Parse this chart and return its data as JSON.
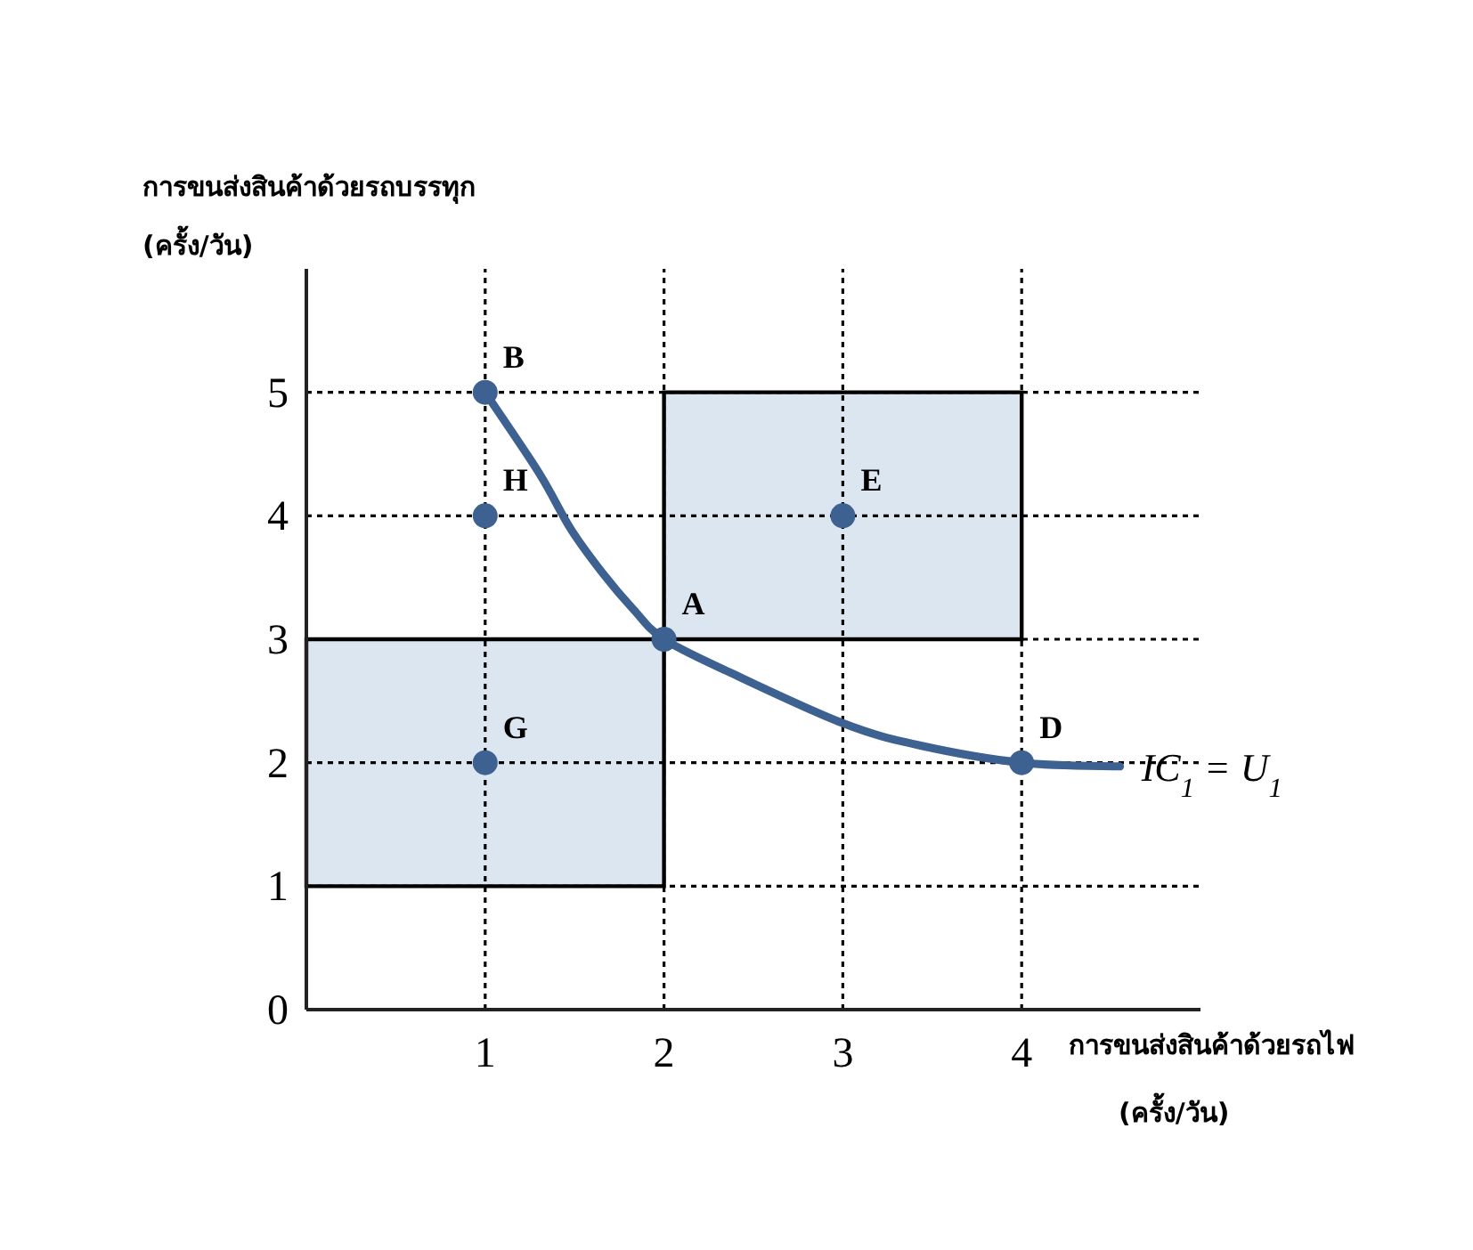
{
  "chart_data": {
    "type": "line",
    "xlabel": "การขนส่งสินค้าด้วยรถไฟ\n(ครั้ง/วัน)",
    "ylabel": "การขนส่งสินค้าด้วยรถบรรทุก\n(ครั้ง/วัน)",
    "xlim": [
      0,
      5
    ],
    "ylim": [
      0,
      6
    ],
    "xticks": [
      1,
      2,
      3,
      4
    ],
    "yticks": [
      0,
      1,
      2,
      3,
      4,
      5
    ],
    "grid": true,
    "series": [
      {
        "type": "area",
        "x": [
          0,
          0,
          2,
          2,
          0
        ],
        "values": [
          1,
          3,
          3,
          1,
          1
        ],
        "color": "#dce6f1"
      },
      {
        "type": "area",
        "x": [
          2,
          2,
          4,
          4,
          2
        ],
        "values": [
          3,
          5,
          5,
          3,
          3
        ],
        "color": "#dce6f1"
      },
      {
        "name": "IC$_{1}$ = U$_{1}$",
        "color": "#3d6190",
        "x": [
          1,
          1.3,
          1.48,
          1.66,
          1.83,
          2,
          2.37,
          3,
          3.43,
          4,
          4.55
        ],
        "values": [
          5,
          4.35,
          3.89,
          3.53,
          3.24,
          3,
          2.73,
          2.32,
          2.14,
          2,
          1.97
        ]
      },
      {
        "type": "scatter",
        "color": "#3d6190",
        "marker": "circle",
        "x": [
          1,
          1,
          2,
          3,
          1,
          4
        ],
        "values": [
          5,
          4,
          3,
          4,
          2,
          2
        ]
      }
    ],
    "annotations": [
      {
        "text": "B",
        "x": 1,
        "y": 5
      },
      {
        "text": "H",
        "x": 1,
        "y": 4
      },
      {
        "text": "A",
        "x": 2,
        "y": 3
      },
      {
        "text": "E",
        "x": 3,
        "y": 4
      },
      {
        "text": "G",
        "x": 1,
        "y": 2
      },
      {
        "text": "D",
        "x": 4,
        "y": 2
      }
    ]
  }
}
